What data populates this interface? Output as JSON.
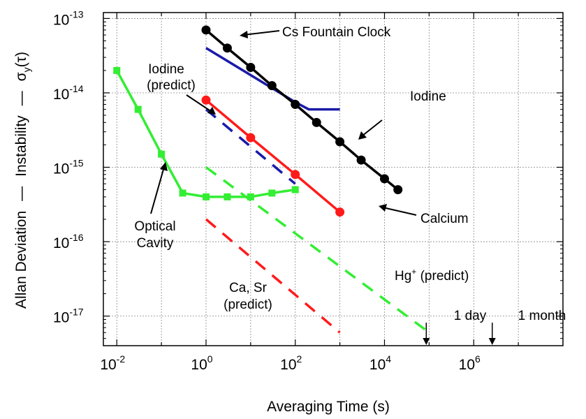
{
  "chart_data": {
    "type": "line",
    "xlabel": "Averaging Time (s)",
    "ylabel_parts": [
      "Allan Deviation",
      "—",
      "Instability",
      "—"
    ],
    "ylabel_symbol": "σ",
    "ylabel_sub": "y",
    "ylabel_arg": "(τ)",
    "x_log": true,
    "y_log": true,
    "xlim": [
      0.005,
      100000000
    ],
    "ylim": [
      4e-18,
      1.2e-13
    ],
    "grid": true,
    "x_ticks": [
      {
        "value": 0.01,
        "base": "10",
        "exp": "-2"
      },
      {
        "value": 1,
        "base": "10",
        "exp": "0"
      },
      {
        "value": 100,
        "base": "10",
        "exp": "2"
      },
      {
        "value": 10000,
        "base": "10",
        "exp": "4"
      },
      {
        "value": 1000000,
        "base": "10",
        "exp": "6"
      }
    ],
    "y_ticks": [
      {
        "value": 1e-17,
        "base": "10",
        "exp": "-17"
      },
      {
        "value": 1e-16,
        "base": "10",
        "exp": "-16"
      },
      {
        "value": 1e-15,
        "base": "10",
        "exp": "-15"
      },
      {
        "value": 1e-14,
        "base": "10",
        "exp": "-14"
      },
      {
        "value": 1e-13,
        "base": "10",
        "exp": "-13"
      }
    ],
    "series": [
      {
        "name": "Cs Fountain Clock",
        "color": "#000000",
        "dash": false,
        "marker": "circle",
        "x": [
          1,
          3,
          10,
          30,
          100,
          300,
          1000,
          3000,
          10000,
          20000
        ],
        "y": [
          7e-14,
          4e-14,
          2.2e-14,
          1.25e-14,
          7e-15,
          4e-15,
          2.2e-15,
          1.25e-15,
          7e-16,
          5e-16
        ]
      },
      {
        "name": "Iodine",
        "color": "#1a1aa8",
        "dash": false,
        "marker": "none",
        "x": [
          1,
          100,
          200,
          1000
        ],
        "y": [
          4e-14,
          7.5e-15,
          6e-15,
          6e-15
        ]
      },
      {
        "name": "Calcium",
        "color": "#ff1a1a",
        "dash": false,
        "marker": "circle",
        "x": [
          1,
          10,
          100,
          1000
        ],
        "y": [
          8e-15,
          2.5e-15,
          8e-16,
          2.5e-16
        ]
      },
      {
        "name": "Optical Cavity",
        "color": "#33ee33",
        "dash": false,
        "marker": "square",
        "x": [
          0.01,
          0.03,
          0.1,
          0.3,
          1,
          3,
          10,
          30,
          100
        ],
        "y": [
          2e-14,
          6e-15,
          1.5e-15,
          4.5e-16,
          4e-16,
          4e-16,
          4e-16,
          4.5e-16,
          5e-16
        ]
      },
      {
        "name": "Iodine (predict)",
        "color": "#1a1aa8",
        "dash": true,
        "marker": "none",
        "x": [
          1,
          100
        ],
        "y": [
          6e-15,
          6e-16
        ]
      },
      {
        "name": "Hg+ (predict)",
        "color": "#33ee33",
        "dash": true,
        "marker": "none",
        "x": [
          1,
          100000
        ],
        "y": [
          1e-15,
          6e-18
        ]
      },
      {
        "name": "Ca, Sr (predict)",
        "color": "#ff1a1a",
        "dash": true,
        "marker": "none",
        "x": [
          1,
          1000
        ],
        "y": [
          2e-16,
          6e-18
        ]
      }
    ],
    "annotations": {
      "cs": "Cs Fountain Clock",
      "iodine": "Iodine",
      "iodine_predict_1": "Iodine",
      "iodine_predict_2": "(predict)",
      "calcium": "Calcium",
      "cavity_1": "Optical",
      "cavity_2": "Cavity",
      "hg_main": "Hg",
      "hg_sup": "+",
      "hg_rest": " (predict)",
      "casr_1": "Ca, Sr",
      "casr_2": "(predict)",
      "day": "1 day",
      "month": "1 month"
    },
    "markers_time": [
      {
        "label_key": "day",
        "x": 86400
      },
      {
        "label_key": "month",
        "x": 2600000
      }
    ]
  }
}
